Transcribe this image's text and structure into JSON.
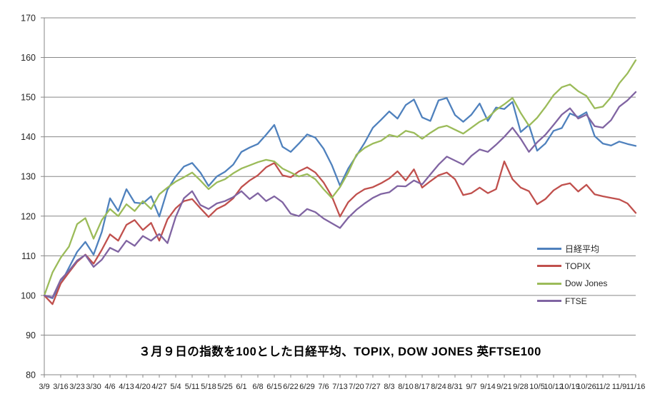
{
  "chart_data": {
    "type": "line",
    "title": "３月９日の指数を100とした日経平均、TOPIX, DOW JONES 英FTSE100",
    "xlabel": "",
    "ylabel": "",
    "ylim": [
      80,
      170
    ],
    "y_ticks": [
      80,
      90,
      100,
      110,
      120,
      130,
      140,
      150,
      160,
      170
    ],
    "grid": true,
    "grid_color": "#878787",
    "axis_color": "#878787",
    "tick_text_color": "#262626",
    "legend_position": "middle-right",
    "points_per_week": 2,
    "x_tick_labels": [
      "3/9",
      "3/16",
      "3/23",
      "3/30",
      "4/6",
      "4/13",
      "4/20",
      "4/27",
      "5/4",
      "5/11",
      "5/18",
      "5/25",
      "6/1",
      "6/8",
      "6/15",
      "6/22",
      "6/29",
      "7/6",
      "7/13",
      "7/20",
      "7/27",
      "8/3",
      "8/10",
      "8/17",
      "8/24",
      "8/31",
      "9/7",
      "9/14",
      "9/21",
      "9/28",
      "10/5",
      "10/12",
      "10/19",
      "10/26",
      "11/2",
      "11/9",
      "11/16"
    ],
    "series": [
      {
        "id": "nikkei",
        "name": "日経平均",
        "color": "#4F81BD",
        "values": [
          100,
          99.3,
          103,
          107,
          111,
          113.5,
          110.3,
          116,
          124.5,
          121.3,
          126.8,
          123.4,
          123.2,
          125,
          119.9,
          126.7,
          130,
          132.5,
          133.4,
          131,
          127.6,
          130,
          131.2,
          133,
          136.2,
          137.3,
          138.2,
          140.5,
          143,
          137.5,
          136.2,
          138.3,
          140.6,
          139.8,
          137,
          132.9,
          127.7,
          132,
          135.2,
          138.5,
          142.3,
          144.3,
          146.4,
          144.6,
          148,
          149.4,
          144.9,
          144,
          149.2,
          149.8,
          145.5,
          143.8,
          145.6,
          148.4,
          144,
          147.4,
          147,
          148.8,
          141.2,
          143,
          136.5,
          138.3,
          141.5,
          142.2,
          145.9,
          145,
          146.2,
          140.2,
          138.3,
          137.8,
          138.8,
          138.2,
          137.7
        ]
      },
      {
        "id": "topix",
        "name": "TOPIX",
        "color": "#C0504D",
        "values": [
          100,
          97.8,
          103,
          105.8,
          108.5,
          110.3,
          108,
          111.5,
          115.4,
          113.8,
          117.8,
          119,
          116.5,
          118.3,
          113.8,
          119.2,
          122,
          123.8,
          124.3,
          122,
          119.8,
          121.8,
          122.8,
          124.5,
          127.3,
          129,
          130.3,
          132.3,
          133.4,
          130.3,
          129.8,
          131.3,
          132.3,
          131,
          128.5,
          125,
          119.9,
          123.5,
          125.5,
          126.8,
          127.3,
          128.3,
          129.5,
          131.3,
          129,
          131.8,
          127.2,
          128.8,
          130.3,
          131,
          129.3,
          125.3,
          125.8,
          127.2,
          125.8,
          126.8,
          133.8,
          129.3,
          127.2,
          126.3,
          123,
          124.3,
          126.5,
          127.8,
          128.3,
          126.2,
          127.9,
          125.5,
          125,
          124.6,
          124.2,
          123.2,
          120.8
        ]
      },
      {
        "id": "dowjones",
        "name": "Dow Jones",
        "color": "#9BBB59",
        "values": [
          100,
          105.8,
          109.5,
          112.3,
          118,
          119.5,
          114.3,
          119,
          121.8,
          120,
          123,
          121.3,
          123.8,
          121.8,
          125.5,
          127.2,
          128.7,
          129.8,
          131,
          129,
          126.8,
          128.5,
          129.3,
          130.8,
          132,
          132.8,
          133.6,
          134.2,
          133.8,
          132,
          131,
          130,
          130.6,
          129.3,
          126.8,
          124.6,
          127.3,
          131,
          135.5,
          137.2,
          138.3,
          139,
          140.5,
          140,
          141.5,
          141,
          139.5,
          141,
          142.3,
          142.8,
          141.8,
          140.8,
          142.3,
          143.8,
          144.8,
          146.8,
          148.2,
          149.8,
          146,
          142.8,
          144.8,
          147.5,
          150.5,
          152.5,
          153.2,
          151.5,
          150.3,
          147.2,
          147.6,
          150,
          153.5,
          156,
          159.3
        ]
      },
      {
        "id": "ftse",
        "name": "FTSE",
        "color": "#8064A2",
        "values": [
          100,
          99.5,
          104,
          106.2,
          108.8,
          110.2,
          107.2,
          109,
          112,
          111,
          113.8,
          112.5,
          115,
          113.8,
          115.5,
          113.2,
          119.8,
          124.5,
          126.3,
          122.8,
          121.8,
          123.2,
          123.8,
          124.8,
          126.3,
          124.3,
          125.8,
          123.8,
          125,
          123.5,
          120.6,
          120,
          121.8,
          121,
          119.4,
          118.2,
          117,
          119.6,
          121.6,
          123.2,
          124.6,
          125.6,
          126,
          127.6,
          127.5,
          129,
          128,
          130.5,
          133,
          135,
          134,
          133,
          135.2,
          136.8,
          136.2,
          138,
          140,
          142.3,
          139.5,
          136.2,
          138.6,
          140.5,
          143,
          145.6,
          147.2,
          144.6,
          145.6,
          142.7,
          142.3,
          144.2,
          147.6,
          149.2,
          151.3
        ]
      }
    ]
  }
}
